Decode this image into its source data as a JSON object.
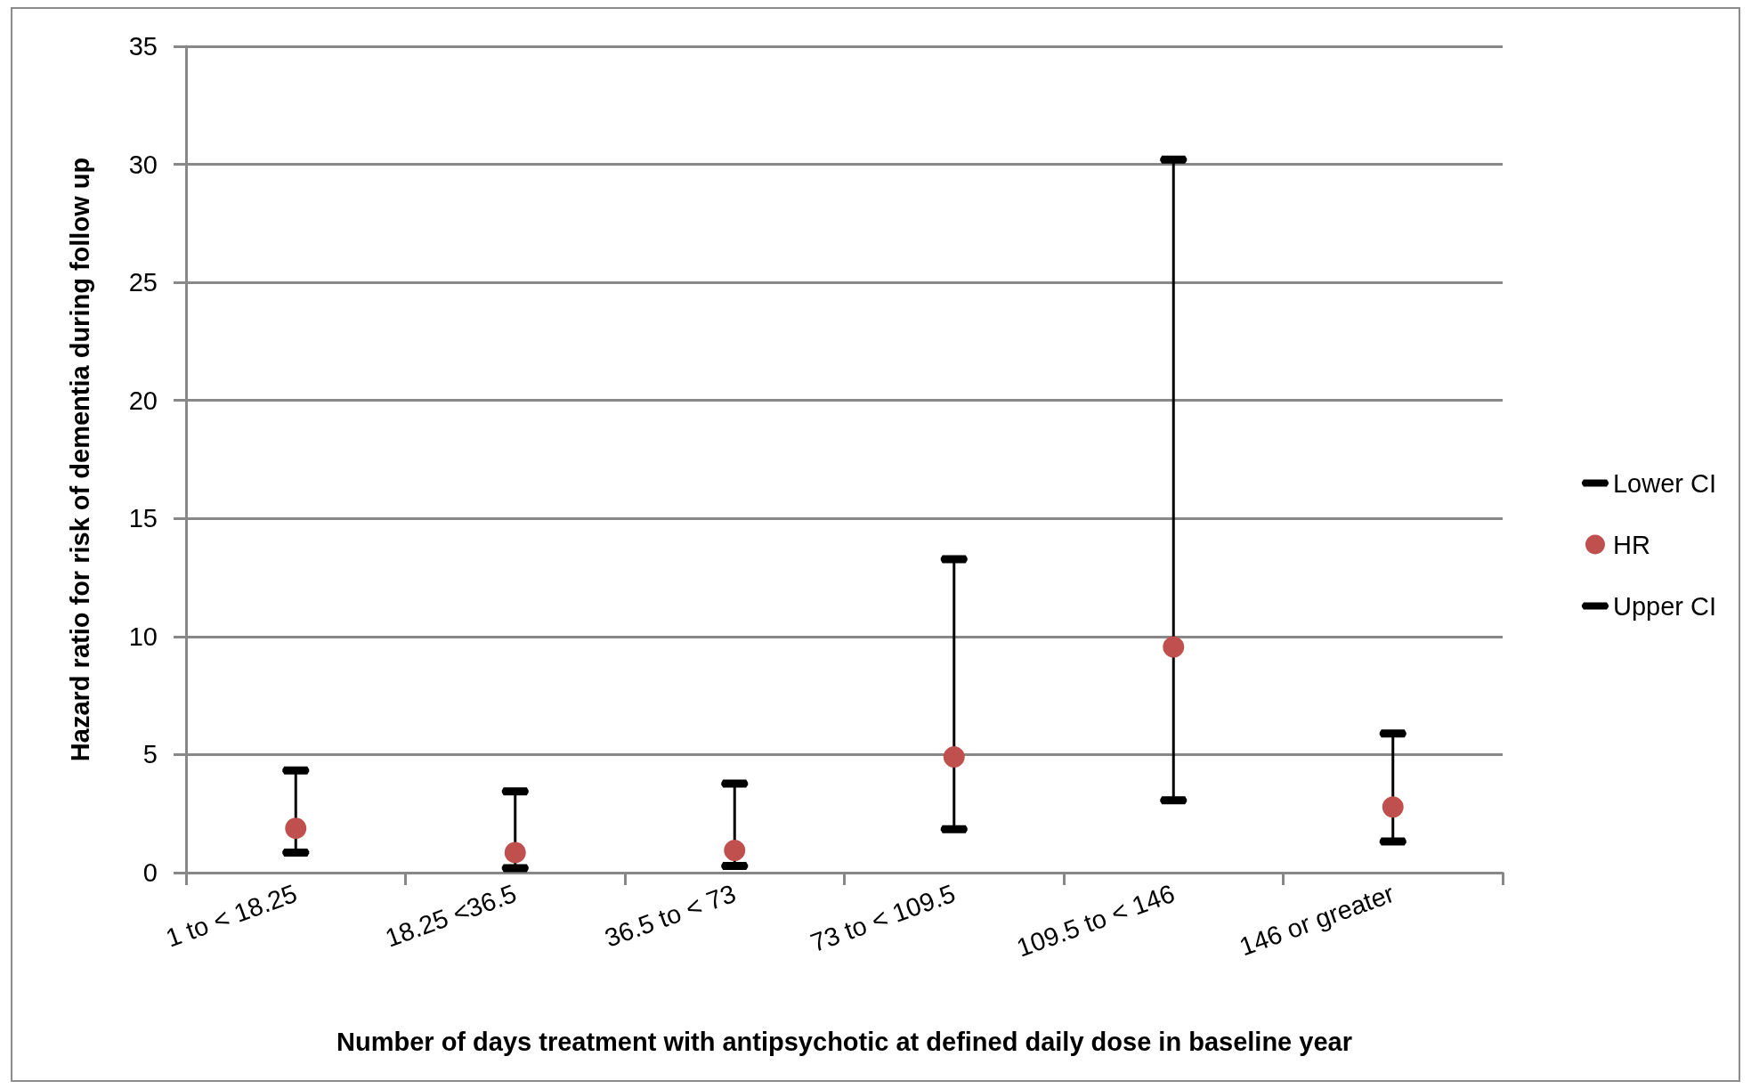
{
  "chart_data": {
    "type": "scatter",
    "xlabel": "Number of days treatment with antipsychotic at defined daily dose in baseline year",
    "ylabel": "Hazard ratio for risk of dementia during follow up",
    "categories": [
      "1 to < 18.25",
      "18.25 <36.5",
      "36.5 to < 73",
      "73 to < 109.5",
      "109.5 to < 146",
      "146 or greater"
    ],
    "series": [
      {
        "name": "Lower CI",
        "color": "#000000",
        "values": [
          0.85,
          0.19,
          0.28,
          1.84,
          3.06,
          1.32
        ]
      },
      {
        "name": "HR",
        "color": "#c0504d",
        "marker": "circle",
        "values": [
          1.88,
          0.85,
          0.94,
          4.9,
          9.56,
          2.78
        ]
      },
      {
        "name": "Upper CI",
        "color": "#000000",
        "values": [
          4.33,
          3.44,
          3.77,
          13.28,
          30.2,
          5.89
        ]
      }
    ],
    "ylim": [
      0,
      35
    ],
    "yticks": [
      0,
      5,
      10,
      15,
      20,
      25,
      30,
      35
    ],
    "grid": "y",
    "legend": "right"
  }
}
